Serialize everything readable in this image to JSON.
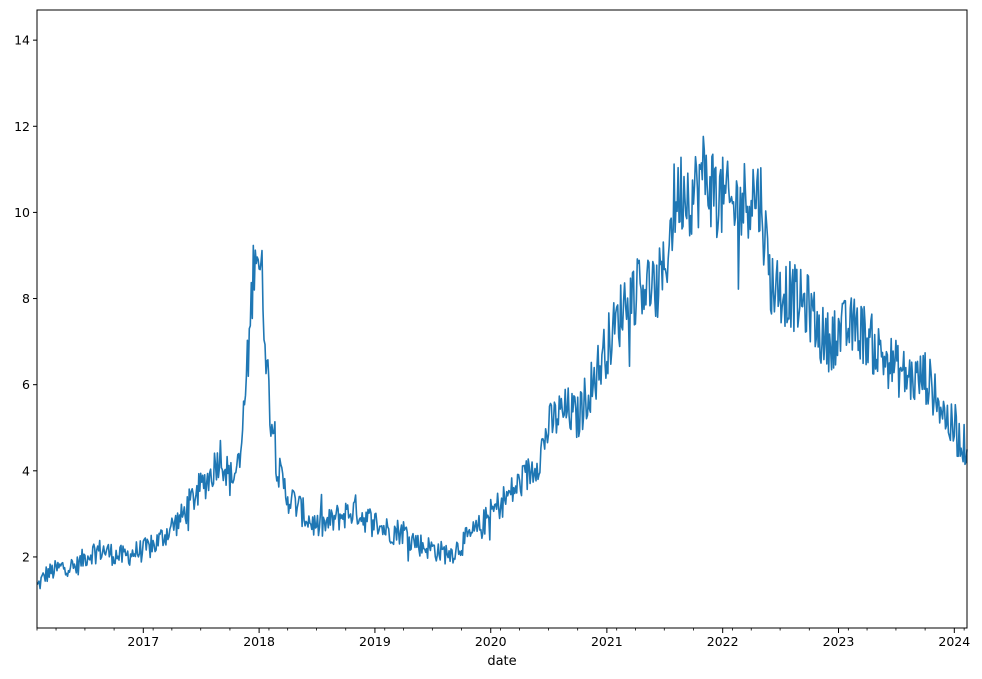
{
  "chart_data": {
    "type": "line",
    "title": "",
    "xlabel": "date",
    "ylabel": "",
    "x_start": "2016-02-01",
    "x_end": "2024-02-10",
    "ylim": [
      0.35,
      14.7
    ],
    "grid": false,
    "legend": "none",
    "line_color": "#1f77b4",
    "x_ticks": [
      "2017",
      "2018",
      "2019",
      "2020",
      "2021",
      "2022",
      "2023",
      "2024"
    ],
    "y_ticks": [
      2,
      4,
      6,
      8,
      10,
      12,
      14
    ],
    "series": [
      {
        "name": "",
        "points": [
          [
            "2016-02-01",
            1.3
          ],
          [
            "2016-03-01",
            1.6
          ],
          [
            "2016-04-01",
            1.7
          ],
          [
            "2016-05-01",
            1.8
          ],
          [
            "2016-06-01",
            1.75
          ],
          [
            "2016-07-01",
            2.0
          ],
          [
            "2016-08-01",
            2.15
          ],
          [
            "2016-09-01",
            2.15
          ],
          [
            "2016-10-01",
            2.05
          ],
          [
            "2016-11-01",
            2.0
          ],
          [
            "2016-12-01",
            2.1
          ],
          [
            "2017-01-01",
            2.15
          ],
          [
            "2017-02-01",
            2.25
          ],
          [
            "2017-03-01",
            2.45
          ],
          [
            "2017-04-01",
            2.7
          ],
          [
            "2017-05-01",
            2.9
          ],
          [
            "2017-06-01",
            3.3
          ],
          [
            "2017-07-01",
            3.6
          ],
          [
            "2017-08-01",
            3.9
          ],
          [
            "2017-09-01",
            4.4
          ],
          [
            "2017-10-01",
            3.8
          ],
          [
            "2017-11-01",
            4.1
          ],
          [
            "2017-12-01",
            7.0
          ],
          [
            "2017-12-20",
            9.5
          ],
          [
            "2018-01-10",
            8.4
          ],
          [
            "2018-02-01",
            5.8
          ],
          [
            "2018-03-01",
            4.0
          ],
          [
            "2018-04-01",
            3.4
          ],
          [
            "2018-05-01",
            3.2
          ],
          [
            "2018-06-01",
            2.9
          ],
          [
            "2018-07-01",
            2.7
          ],
          [
            "2018-08-01",
            2.75
          ],
          [
            "2018-09-01",
            2.9
          ],
          [
            "2018-10-01",
            3.0
          ],
          [
            "2018-11-01",
            3.1
          ],
          [
            "2018-12-01",
            2.9
          ],
          [
            "2019-01-01",
            2.8
          ],
          [
            "2019-02-01",
            2.65
          ],
          [
            "2019-03-01",
            2.6
          ],
          [
            "2019-04-01",
            2.6
          ],
          [
            "2019-05-01",
            2.4
          ],
          [
            "2019-06-01",
            2.25
          ],
          [
            "2019-07-01",
            2.2
          ],
          [
            "2019-08-01",
            2.1
          ],
          [
            "2019-09-01",
            2.1
          ],
          [
            "2019-10-01",
            2.3
          ],
          [
            "2019-11-01",
            2.5
          ],
          [
            "2019-12-01",
            2.7
          ],
          [
            "2020-01-01",
            3.0
          ],
          [
            "2020-02-01",
            3.25
          ],
          [
            "2020-03-01",
            3.45
          ],
          [
            "2020-04-01",
            3.7
          ],
          [
            "2020-05-01",
            3.95
          ],
          [
            "2020-06-01",
            4.3
          ],
          [
            "2020-07-01",
            5.0
          ],
          [
            "2020-08-01",
            5.3
          ],
          [
            "2020-09-01",
            5.4
          ],
          [
            "2020-10-01",
            5.2
          ],
          [
            "2020-11-01",
            5.8
          ],
          [
            "2020-12-01",
            6.3
          ],
          [
            "2021-01-01",
            6.9
          ],
          [
            "2021-02-01",
            7.4
          ],
          [
            "2021-03-01",
            8.0
          ],
          [
            "2021-04-01",
            8.2
          ],
          [
            "2021-05-01",
            8.4
          ],
          [
            "2021-06-01",
            8.1
          ],
          [
            "2021-07-01",
            8.6
          ],
          [
            "2021-08-01",
            10.2
          ],
          [
            "2021-09-01",
            10.6
          ],
          [
            "2021-10-01",
            10.4
          ],
          [
            "2021-11-01",
            10.9
          ],
          [
            "2021-12-01",
            10.6
          ],
          [
            "2022-01-01",
            10.3
          ],
          [
            "2022-02-01",
            10.1
          ],
          [
            "2022-03-01",
            10.2
          ],
          [
            "2022-04-01",
            10.5
          ],
          [
            "2022-05-01",
            10.3
          ],
          [
            "2022-06-01",
            8.4
          ],
          [
            "2022-07-01",
            8.2
          ],
          [
            "2022-08-01",
            8.1
          ],
          [
            "2022-09-01",
            7.9
          ],
          [
            "2022-10-01",
            7.8
          ],
          [
            "2022-11-01",
            7.2
          ],
          [
            "2022-12-01",
            7.0
          ],
          [
            "2023-01-01",
            7.2
          ],
          [
            "2023-02-01",
            7.3
          ],
          [
            "2023-03-01",
            7.35
          ],
          [
            "2023-04-01",
            7.1
          ],
          [
            "2023-05-01",
            6.8
          ],
          [
            "2023-06-01",
            6.6
          ],
          [
            "2023-07-01",
            6.4
          ],
          [
            "2023-08-01",
            6.2
          ],
          [
            "2023-09-01",
            6.1
          ],
          [
            "2023-10-01",
            6.2
          ],
          [
            "2023-11-01",
            5.8
          ],
          [
            "2023-12-01",
            5.3
          ],
          [
            "2024-01-01",
            4.9
          ],
          [
            "2024-02-10",
            4.5
          ]
        ]
      }
    ]
  }
}
